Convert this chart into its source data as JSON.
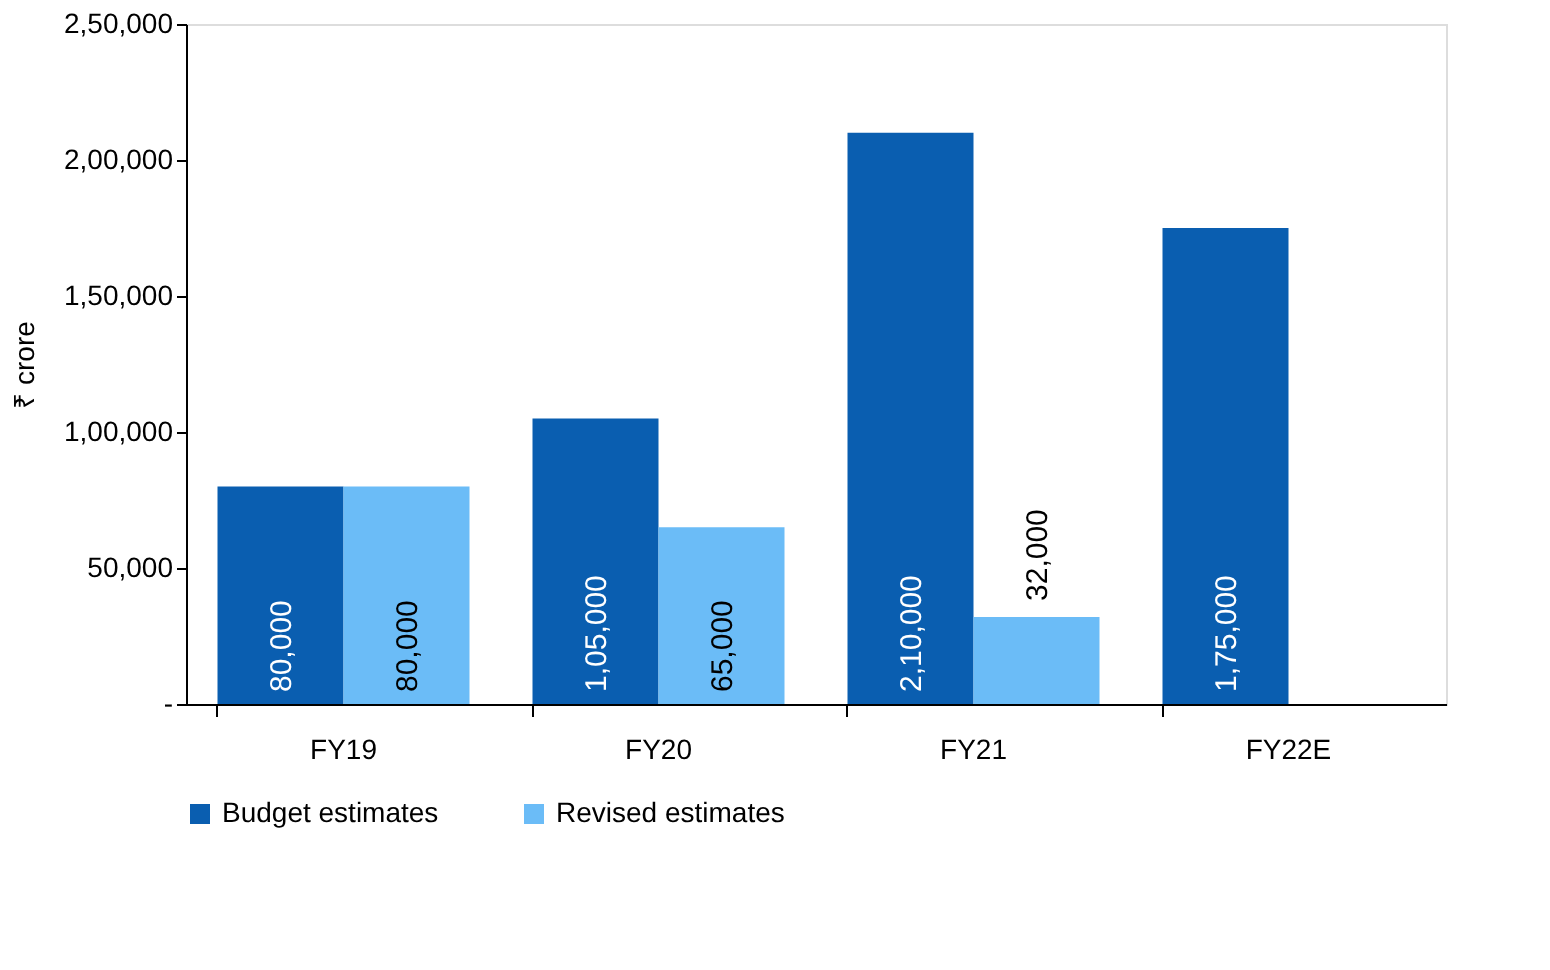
{
  "chart_data": {
    "type": "bar",
    "ylabel": "₹ crore",
    "categories": [
      "FY19",
      "FY20",
      "FY21",
      "FY22E"
    ],
    "series": [
      {
        "name": "Budget estimates",
        "color": "#0a5eb0",
        "values": [
          80000,
          105000,
          210000,
          175000
        ],
        "value_labels": [
          "80,000",
          "1,05,000",
          "2,10,000",
          "1,75,000"
        ]
      },
      {
        "name": "Revised estimates",
        "color": "#6bbcf7",
        "values": [
          80000,
          65000,
          32000,
          null
        ],
        "value_labels": [
          "80,000",
          "65,000",
          "32,000",
          null
        ]
      }
    ],
    "ylim": [
      0,
      250000
    ],
    "yticks": [
      {
        "value": 0,
        "label": "-"
      },
      {
        "value": 50000,
        "label": "50,000"
      },
      {
        "value": 100000,
        "label": "1,00,000"
      },
      {
        "value": 150000,
        "label": "1,50,000"
      },
      {
        "value": 200000,
        "label": "2,00,000"
      },
      {
        "value": 250000,
        "label": "2,50,000"
      }
    ],
    "grid": false,
    "legend": "bottom"
  }
}
